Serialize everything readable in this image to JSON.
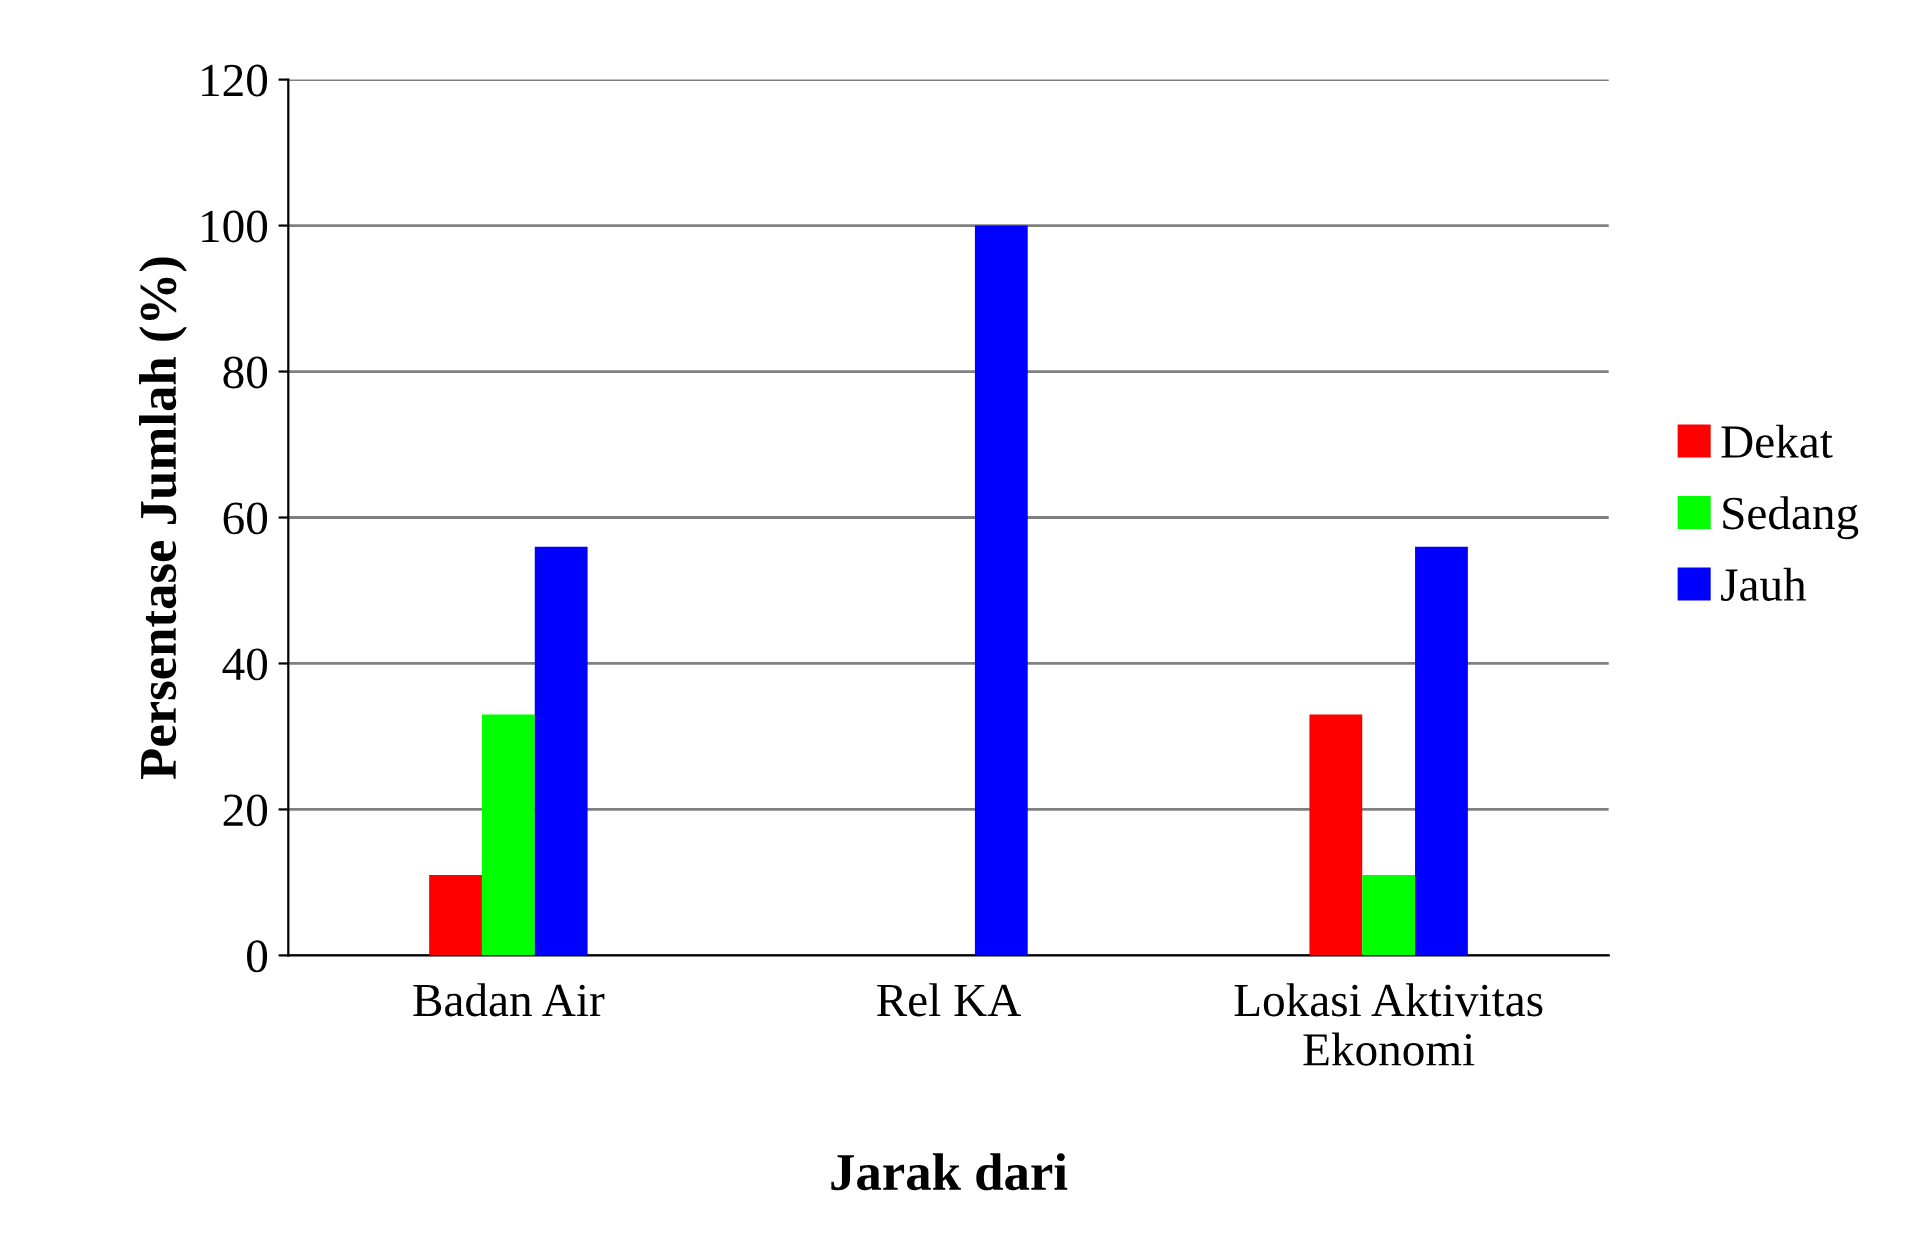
{
  "chart_data": {
    "type": "bar",
    "xlabel": "Jarak dari",
    "ylabel": "Persentase Jumlah (%)",
    "categories": [
      "Badan Air",
      "Rel KA",
      "Lokasi Aktivitas\nEkonomi"
    ],
    "series": [
      {
        "name": "Dekat",
        "color": "#ff0000",
        "values": [
          11,
          0,
          33
        ]
      },
      {
        "name": "Sedang",
        "color": "#00ff00",
        "values": [
          33,
          0,
          11
        ]
      },
      {
        "name": "Jauh",
        "color": "#0000ff",
        "values": [
          56,
          100,
          56
        ]
      }
    ],
    "ylim": [
      0,
      120
    ],
    "yticks": [
      0,
      20,
      40,
      60,
      80,
      100,
      120
    ],
    "grid": "y",
    "legend": "right"
  }
}
